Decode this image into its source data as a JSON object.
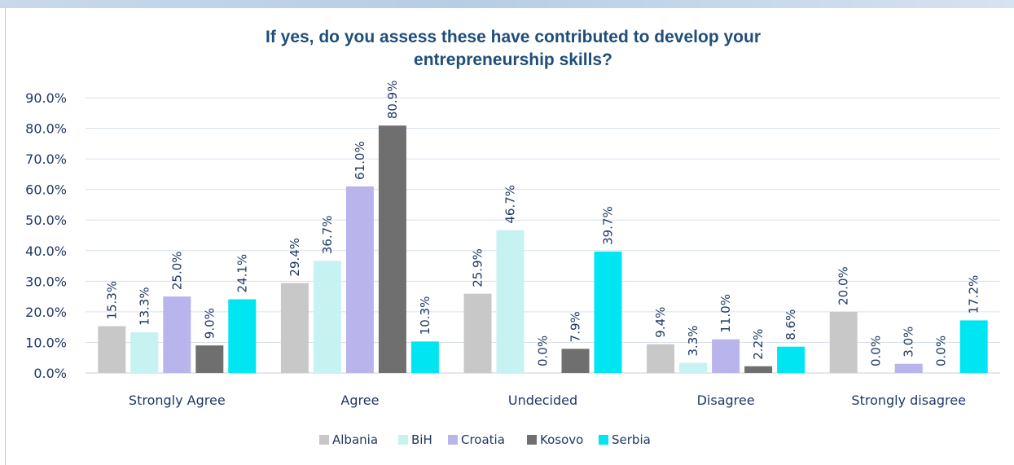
{
  "chart_data": {
    "type": "bar",
    "title": "If yes, do you assess these have contributed to develop your entrepreneurship skills?",
    "title_lines": [
      "If yes, do you assess these have contributed to develop your",
      "entrepreneurship skills?"
    ],
    "categories": [
      "Strongly Agree",
      "Agree",
      "Undecided",
      "Disagree",
      "Strongly disagree"
    ],
    "series": [
      {
        "name": "Albania",
        "values": [
          15.3,
          29.4,
          25.9,
          9.4,
          20.0
        ],
        "labels": [
          "15.3%",
          "29.4%",
          "25.9%",
          "9.4%",
          "20.0%"
        ],
        "color": "#c8c8c8"
      },
      {
        "name": "BiH",
        "values": [
          13.3,
          36.7,
          46.7,
          3.3,
          0.0
        ],
        "labels": [
          "13.3%",
          "36.7%",
          "46.7%",
          "3.3%",
          "0.0%"
        ],
        "color": "#c6f2f2"
      },
      {
        "name": "Croatia",
        "values": [
          25.0,
          61.0,
          0.0,
          11.0,
          3.0
        ],
        "labels": [
          "25.0%",
          "61.0%",
          "0.0%",
          "11.0%",
          "3.0%"
        ],
        "color": "#b9b4ec"
      },
      {
        "name": "Kosovo",
        "values": [
          9.0,
          80.9,
          7.9,
          2.2,
          0.0
        ],
        "labels": [
          "9.0%",
          "80.9%",
          "7.9%",
          "2.2%",
          "0.0%"
        ],
        "color": "#6f6f6f"
      },
      {
        "name": "Serbia",
        "values": [
          24.1,
          10.3,
          39.7,
          8.6,
          17.2
        ],
        "labels": [
          "24.1%",
          "10.3%",
          "39.7%",
          "8.6%",
          "17.2%"
        ],
        "color": "#00e5f2"
      }
    ],
    "y_ticks": [
      "0.0%",
      "10.0%",
      "20.0%",
      "30.0%",
      "40.0%",
      "50.0%",
      "60.0%",
      "70.0%",
      "80.0%",
      "90.0%"
    ],
    "ylim": [
      0,
      90
    ],
    "grid": true,
    "legend_position": "bottom"
  }
}
